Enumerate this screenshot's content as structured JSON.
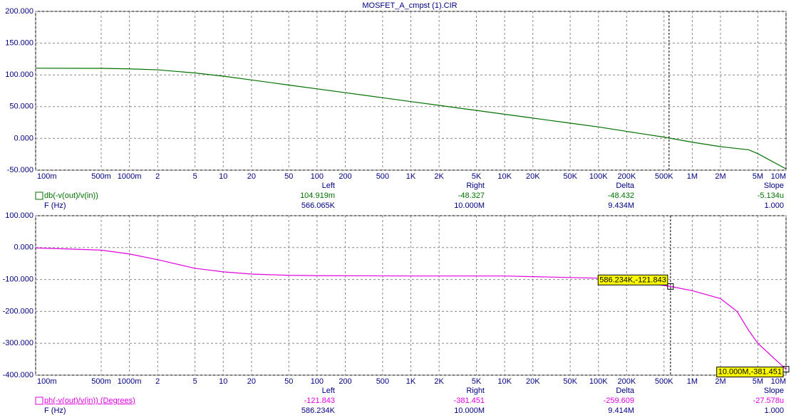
{
  "window_title": "MOSFET_A_cmpst (1).CIR",
  "chart_data": [
    {
      "type": "line",
      "xscale": "log",
      "grid": true,
      "xlabel": "F (Hz)",
      "xlim": [
        0.1,
        10000000
      ],
      "ylim": [
        -50,
        200
      ],
      "xticks": [
        {
          "value": 0.1,
          "label": "100m"
        },
        {
          "value": 0.5,
          "label": "500m"
        },
        {
          "value": 1,
          "label": "1000m"
        },
        2,
        5,
        10,
        20,
        50,
        100,
        200,
        500,
        {
          "value": 1000,
          "label": "1K"
        },
        {
          "value": 2000,
          "label": "2K"
        },
        {
          "value": 5000,
          "label": "5K"
        },
        {
          "value": 10000,
          "label": "10K"
        },
        {
          "value": 20000,
          "label": "20K"
        },
        {
          "value": 50000,
          "label": "50K"
        },
        {
          "value": 100000,
          "label": "100K"
        },
        {
          "value": 200000,
          "label": "200K"
        },
        {
          "value": 500000,
          "label": "500K"
        },
        {
          "value": 1000000,
          "label": "1M"
        },
        {
          "value": 2000000,
          "label": "2M"
        },
        {
          "value": 5000000,
          "label": "5M"
        },
        {
          "value": 10000000,
          "label": "10M"
        }
      ],
      "yticks": [
        {
          "value": 200,
          "label": "200.000"
        },
        {
          "value": 150,
          "label": "150.000"
        },
        {
          "value": 100,
          "label": "100.000"
        },
        {
          "value": 50,
          "label": "50.000"
        },
        {
          "value": 0,
          "label": "0.000"
        },
        {
          "value": -50,
          "label": "-50.000"
        }
      ],
      "x": [
        0.1,
        0.5,
        1,
        2,
        5,
        10,
        20,
        50,
        100,
        200,
        500,
        1000,
        2000,
        5000,
        10000,
        20000,
        50000,
        100000,
        200000,
        500000,
        1000000,
        2000000,
        4000000,
        5000000,
        10000000
      ],
      "series": [
        {
          "name": "db(-v(out)/v(in))",
          "color": "#007000",
          "values": [
            110.5,
            110.3,
            109.5,
            108,
            103,
            98,
            92,
            84,
            78,
            72,
            64,
            58,
            52,
            44,
            38,
            32,
            24,
            18,
            11,
            2,
            -6,
            -13,
            -18,
            -24,
            -48
          ]
        }
      ],
      "cursor_x": 566065,
      "annotations": [],
      "readout": {
        "columns": [
          "Left",
          "Right",
          "Delta",
          "Slope"
        ],
        "values": [
          "104.919m",
          "-48.327",
          "-48.432",
          "-5.134u"
        ],
        "x_values": [
          "566.065K",
          "10.000M",
          "9.434M",
          "1.000"
        ]
      }
    },
    {
      "type": "line",
      "xscale": "log",
      "grid": true,
      "xlabel": "F (Hz)",
      "xlim": [
        0.1,
        10000000
      ],
      "ylim": [
        -400,
        100
      ],
      "xticks": [
        {
          "value": 0.1,
          "label": "100m"
        },
        {
          "value": 0.5,
          "label": "500m"
        },
        {
          "value": 1,
          "label": "1000m"
        },
        2,
        5,
        10,
        20,
        50,
        100,
        200,
        500,
        {
          "value": 1000,
          "label": "1K"
        },
        {
          "value": 2000,
          "label": "2K"
        },
        {
          "value": 5000,
          "label": "5K"
        },
        {
          "value": 10000,
          "label": "10K"
        },
        {
          "value": 20000,
          "label": "20K"
        },
        {
          "value": 50000,
          "label": "50K"
        },
        {
          "value": 100000,
          "label": "100K"
        },
        {
          "value": 200000,
          "label": "200K"
        },
        {
          "value": 500000,
          "label": "500K"
        },
        {
          "value": 1000000,
          "label": "1M"
        },
        {
          "value": 2000000,
          "label": "2M"
        },
        {
          "value": 5000000,
          "label": "5M"
        },
        {
          "value": 10000000,
          "label": "10M"
        }
      ],
      "yticks": [
        {
          "value": 100,
          "label": "100.000"
        },
        {
          "value": 0,
          "label": "0.000"
        },
        {
          "value": -100,
          "label": "-100.000"
        },
        {
          "value": -200,
          "label": "-200.000"
        },
        {
          "value": -300,
          "label": "-300.000"
        },
        {
          "value": -400,
          "label": "-400.000"
        }
      ],
      "x": [
        0.1,
        0.5,
        1,
        2,
        5,
        10,
        20,
        50,
        100,
        1000,
        10000,
        100000,
        200000,
        586234,
        1000000,
        2000000,
        3000000,
        4000000,
        5000000,
        7000000,
        10000000
      ],
      "series": [
        {
          "name": "ph(-v(out)/v(in)) (Degrees)",
          "color": "#e000e0",
          "values": [
            -1,
            -8,
            -20,
            -38,
            -65,
            -76,
            -83,
            -87,
            -88,
            -89,
            -89,
            -96,
            -102,
            -121.843,
            -135,
            -160,
            -200,
            -260,
            -300,
            -340,
            -381.451
          ]
        }
      ],
      "cursor_x": 586234,
      "annotations": [
        {
          "text": "586.234K,-121.843",
          "x": 586234,
          "y": -121.843
        },
        {
          "text": "10.000M,-381.451",
          "x": 10000000,
          "y": -381.451
        }
      ],
      "readout": {
        "columns": [
          "Left",
          "Right",
          "Delta",
          "Slope"
        ],
        "values": [
          "-121.843",
          "-381.451",
          "-259.609",
          "-27.578u"
        ],
        "x_values": [
          "586.234K",
          "10.000M",
          "9.414M",
          "1.000"
        ]
      }
    }
  ]
}
